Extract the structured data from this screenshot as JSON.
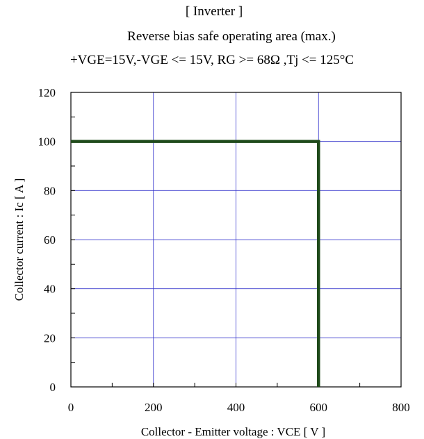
{
  "chart_data": {
    "type": "line",
    "title": "[ Inverter ]",
    "subtitle": "Reverse bias safe operating area (max.)",
    "conditions": "+VGE=15V,-VGE <= 15V, RG >= 68Ω ,Tj <= 125°C",
    "xlabel": "Collector - Emitter voltage  :  VCE  [ V ]",
    "ylabel": "Collector current  : Ic  [ A ]",
    "xlim": [
      0,
      800
    ],
    "ylim": [
      0,
      120
    ],
    "xticks": [
      0,
      200,
      400,
      600,
      800
    ],
    "yticks": [
      0,
      20,
      40,
      60,
      80,
      100,
      120
    ],
    "grid": true,
    "series": [
      {
        "x": [
          0,
          600,
          600
        ],
        "y": [
          100,
          100,
          0
        ],
        "color": "#1f4a1a"
      }
    ]
  },
  "colors": {
    "grid": "#3333cc",
    "frame": "#000000",
    "series": "#1f4a1a"
  }
}
